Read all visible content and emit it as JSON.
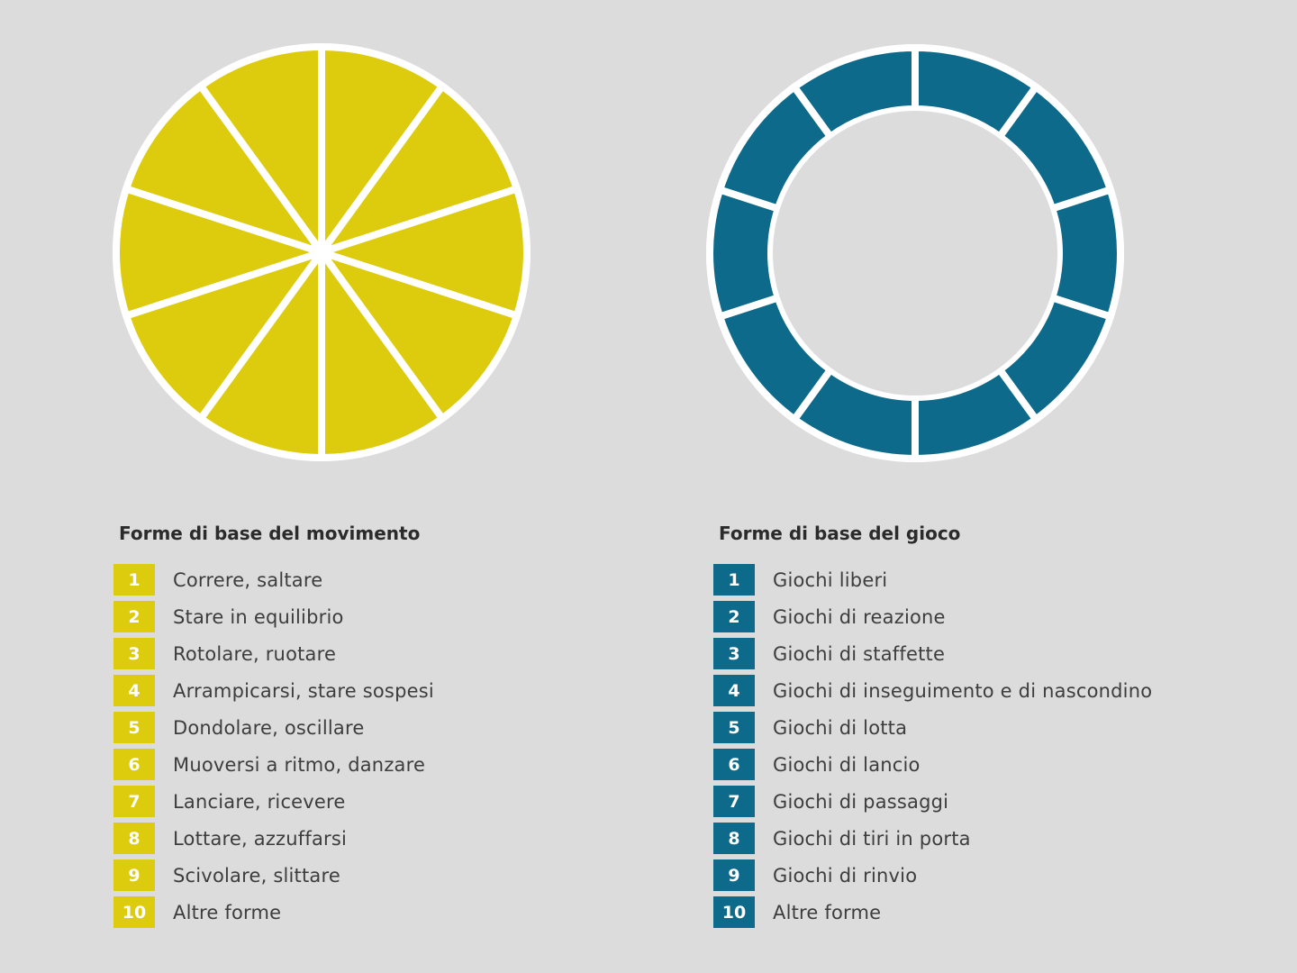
{
  "chart_data": [
    {
      "type": "pie",
      "title": "Forme di base del movimento",
      "color": "#ddcb0d",
      "categories": [
        "1",
        "2",
        "3",
        "4",
        "5",
        "6",
        "7",
        "8",
        "9",
        "10"
      ],
      "labels": [
        "Correre, saltare",
        "Stare in equilibrio",
        "Rotolare, ruotare",
        "Arrampicarsi, stare sospesi",
        "Dondolare, oscillare",
        "Muoversi a ritmo, danzare",
        "Lanciare, ricevere",
        "Lottare, azzuffarsi",
        "Scivolare, slittare",
        "Altre forme"
      ],
      "values": [
        1,
        1,
        1,
        1,
        1,
        1,
        1,
        1,
        1,
        1
      ]
    },
    {
      "type": "donut",
      "title": "Forme di base del gioco",
      "color": "#0d6a8b",
      "categories": [
        "1",
        "2",
        "3",
        "4",
        "5",
        "6",
        "7",
        "8",
        "9",
        "10"
      ],
      "labels": [
        "Giochi liberi",
        "Giochi di reazione",
        "Giochi di staffette",
        "Giochi di inseguimento e di nascondino",
        "Giochi di lotta",
        "Giochi di lancio",
        "Giochi di passaggi",
        "Giochi di tiri in porta",
        "Giochi di rinvio",
        "Altre forme"
      ],
      "values": [
        1,
        1,
        1,
        1,
        1,
        1,
        1,
        1,
        1,
        1
      ]
    }
  ]
}
